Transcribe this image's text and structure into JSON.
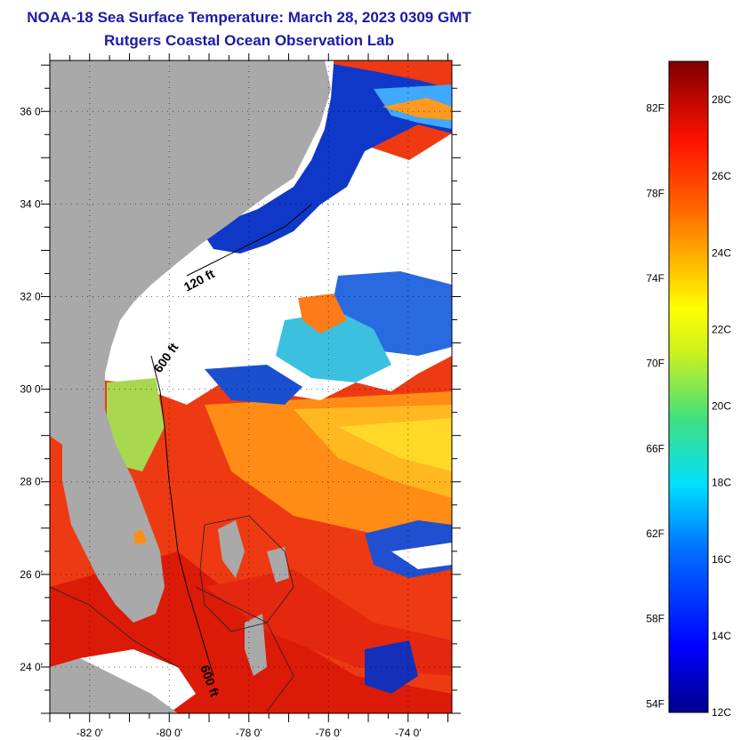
{
  "title": {
    "line1": "NOAA-18 Sea Surface Temperature:  March 28, 2023 0309 GMT",
    "line2": "Rutgers Coastal Ocean Observation Lab"
  },
  "map": {
    "lon_labels": [
      "-82 0'",
      "-80 0'",
      "-78 0'",
      "-76 0'",
      "-74 0'"
    ],
    "lon_values": [
      -82,
      -80,
      -78,
      -76,
      -74
    ],
    "lat_labels": [
      "24 0'",
      "26 0'",
      "28 0'",
      "30 0'",
      "32 0'",
      "34 0'",
      "36 0'"
    ],
    "lat_values": [
      24,
      26,
      28,
      30,
      32,
      34,
      36
    ],
    "lon_range": [
      -83,
      -72.9
    ],
    "lat_range": [
      23,
      37.1
    ],
    "contour_labels": [
      "120 ft",
      "600 ft",
      "600 ft"
    ],
    "colors": {
      "land": "#a9a9a9",
      "cloud": "#ffffff",
      "warm": "#f23a10",
      "hot": "#e01a08",
      "orange": "#ff8a10",
      "yellow": "#ffd21e",
      "blue": "#1040d0",
      "cyan": "#3fb0ff",
      "green": "#70d070"
    }
  },
  "colorbar": {
    "fahrenheit_labels": [
      "54F",
      "58F",
      "62F",
      "66F",
      "70F",
      "74F",
      "78F",
      "82F"
    ],
    "fahrenheit_values": [
      54,
      58,
      62,
      66,
      70,
      74,
      78,
      82
    ],
    "celsius_labels": [
      "12C",
      "14C",
      "16C",
      "18C",
      "20C",
      "22C",
      "24C",
      "26C",
      "28C"
    ],
    "celsius_values": [
      12,
      14,
      16,
      18,
      20,
      22,
      24,
      26,
      28
    ],
    "range_c": [
      12,
      29
    ]
  }
}
